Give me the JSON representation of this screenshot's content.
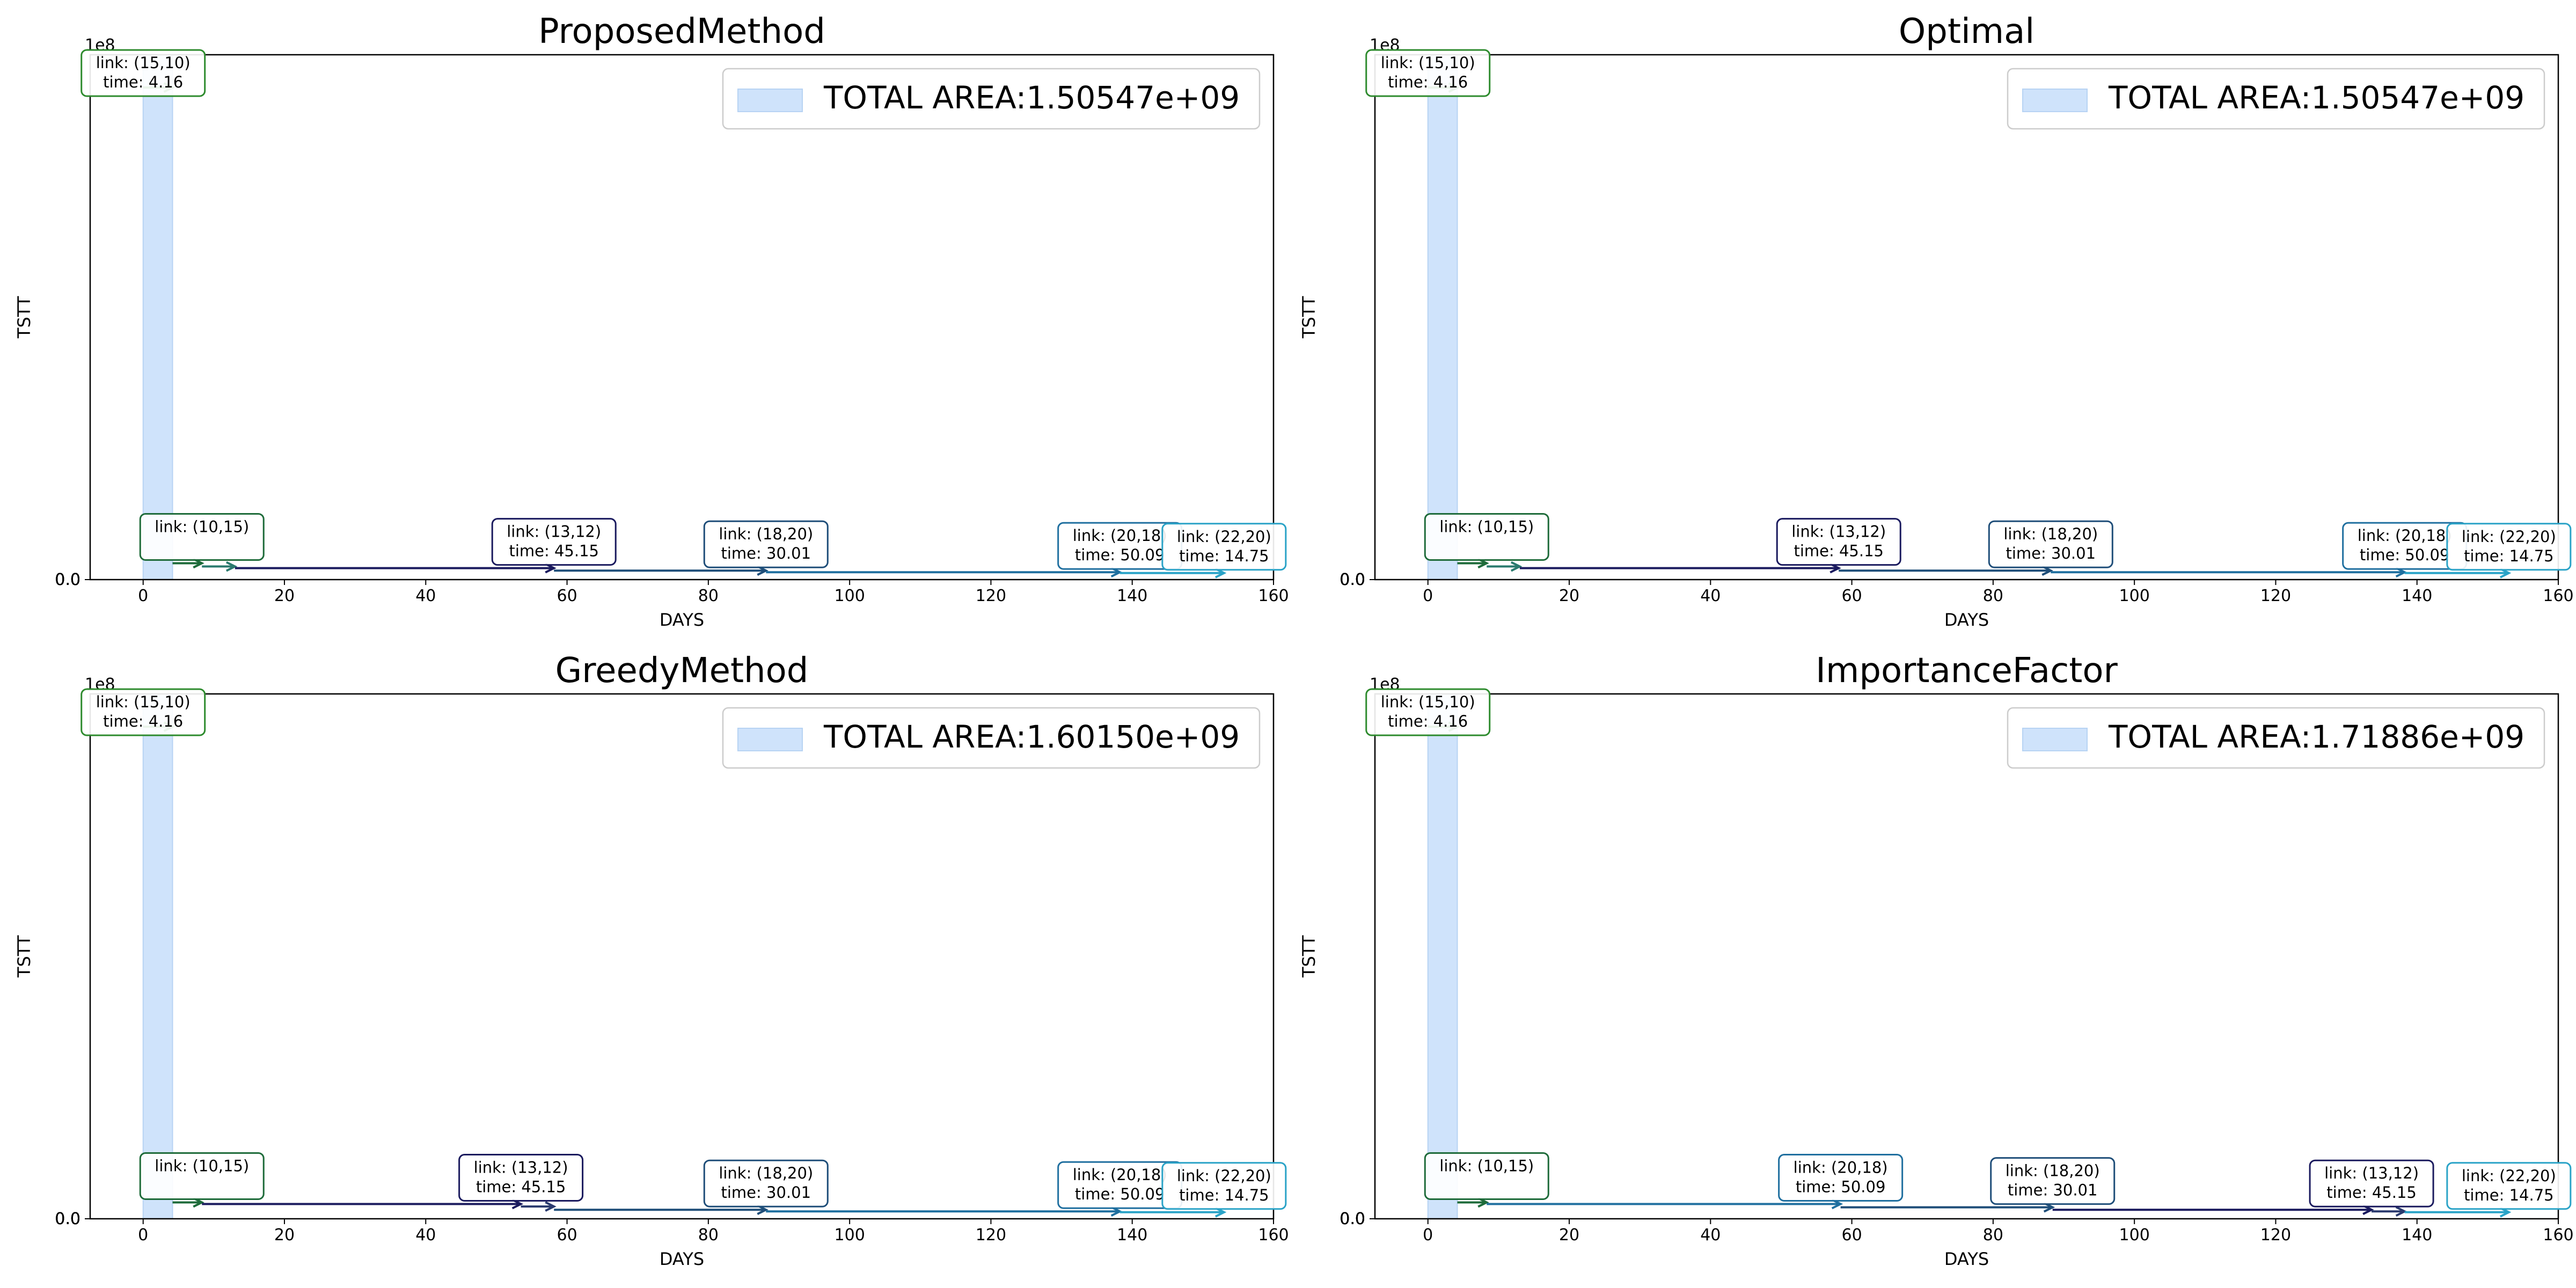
{
  "chart_data": [
    {
      "type": "area",
      "title": "ProposedMethod",
      "xlabel": "DAYS",
      "ylabel": "TSTT",
      "y_offset_label": "1e8",
      "xlim": [
        -7.5,
        160
      ],
      "ylim": [
        0,
        320000000.0
      ],
      "xticks": [
        0,
        20,
        40,
        60,
        80,
        100,
        120,
        140,
        160
      ],
      "yticks": [
        0.5,
        1.0,
        1.5,
        2.0,
        2.5,
        3.0
      ],
      "legend": {
        "label": "TOTAL AREA:1.50547e+09",
        "placement": "upper right"
      },
      "shaded_interval": {
        "x0": 0,
        "x1": 4.16
      },
      "steps": [
        {
          "link": "(15,10)",
          "time": "4.16",
          "start": 0,
          "end": 4.16,
          "tstt": 300000000.0,
          "color": "#2e8b2e"
        },
        {
          "link": "(10,15)",
          "time": "",
          "start": 4.16,
          "end": 8.32,
          "tstt": 10000000.0,
          "color": "#1e6b3a"
        },
        {
          "link": "",
          "time": "",
          "start": 8.32,
          "end": 13.0,
          "tstt": 8000000.0,
          "color": "#2a7a6e"
        },
        {
          "link": "(13,12)",
          "time": "45.15",
          "start": 13.0,
          "end": 58.15,
          "tstt": 7000000.0,
          "color": "#1a1a5e"
        },
        {
          "link": "(18,20)",
          "time": "30.01",
          "start": 58.15,
          "end": 88.16,
          "tstt": 5500000.0,
          "color": "#1f4e79"
        },
        {
          "link": "(20,18)",
          "time": "50.09",
          "start": 88.16,
          "end": 138.25,
          "tstt": 4500000.0,
          "color": "#1f6f9f"
        },
        {
          "link": "(22,20)",
          "time": "14.75",
          "start": 138.25,
          "end": 153.0,
          "tstt": 4000000.0,
          "color": "#2aa3c7"
        }
      ]
    },
    {
      "type": "area",
      "title": "Optimal",
      "xlabel": "DAYS",
      "ylabel": "TSTT",
      "y_offset_label": "1e8",
      "xlim": [
        -7.5,
        160
      ],
      "ylim": [
        0,
        320000000.0
      ],
      "xticks": [
        0,
        20,
        40,
        60,
        80,
        100,
        120,
        140,
        160
      ],
      "yticks": [
        0.5,
        1.0,
        1.5,
        2.0,
        2.5,
        3.0
      ],
      "legend": {
        "label": "TOTAL AREA:1.50547e+09",
        "placement": "upper right"
      },
      "shaded_interval": {
        "x0": 0,
        "x1": 4.16
      },
      "steps": [
        {
          "link": "(15,10)",
          "time": "4.16",
          "start": 0,
          "end": 4.16,
          "tstt": 300000000.0,
          "color": "#2e8b2e"
        },
        {
          "link": "(10,15)",
          "time": "",
          "start": 4.16,
          "end": 8.32,
          "tstt": 10000000.0,
          "color": "#1e6b3a"
        },
        {
          "link": "",
          "time": "",
          "start": 8.32,
          "end": 13.0,
          "tstt": 8000000.0,
          "color": "#2a7a6e"
        },
        {
          "link": "(13,12)",
          "time": "45.15",
          "start": 13.0,
          "end": 58.15,
          "tstt": 7000000.0,
          "color": "#1a1a5e"
        },
        {
          "link": "(18,20)",
          "time": "30.01",
          "start": 58.15,
          "end": 88.16,
          "tstt": 5500000.0,
          "color": "#1f4e79"
        },
        {
          "link": "(20,18)",
          "time": "50.09",
          "start": 88.16,
          "end": 138.25,
          "tstt": 4500000.0,
          "color": "#1f6f9f"
        },
        {
          "link": "(22,20)",
          "time": "14.75",
          "start": 138.25,
          "end": 153.0,
          "tstt": 4000000.0,
          "color": "#2aa3c7"
        }
      ]
    },
    {
      "type": "area",
      "title": "GreedyMethod",
      "xlabel": "DAYS",
      "ylabel": "TSTT",
      "y_offset_label": "1e8",
      "xlim": [
        -7.5,
        160
      ],
      "ylim": [
        0,
        320000000.0
      ],
      "xticks": [
        0,
        20,
        40,
        60,
        80,
        100,
        120,
        140,
        160
      ],
      "yticks": [
        0.5,
        1.0,
        1.5,
        2.0,
        2.5,
        3.0
      ],
      "legend": {
        "label": "TOTAL AREA:1.60150e+09",
        "placement": "upper right"
      },
      "shaded_interval": {
        "x0": 0,
        "x1": 4.16
      },
      "steps": [
        {
          "link": "(15,10)",
          "time": "4.16",
          "start": 0,
          "end": 4.16,
          "tstt": 300000000.0,
          "color": "#2e8b2e"
        },
        {
          "link": "(10,15)",
          "time": "",
          "start": 4.16,
          "end": 8.32,
          "tstt": 10000000.0,
          "color": "#1e6b3a"
        },
        {
          "link": "(13,12)",
          "time": "45.15",
          "start": 8.32,
          "end": 53.47,
          "tstt": 9000000.0,
          "color": "#1a1a5e"
        },
        {
          "link": "",
          "time": "",
          "start": 53.47,
          "end": 58.15,
          "tstt": 7500000.0,
          "color": "#2a3a6e"
        },
        {
          "link": "(18,20)",
          "time": "30.01",
          "start": 58.15,
          "end": 88.16,
          "tstt": 5500000.0,
          "color": "#1f4e79"
        },
        {
          "link": "(20,18)",
          "time": "50.09",
          "start": 88.16,
          "end": 138.25,
          "tstt": 4500000.0,
          "color": "#1f6f9f"
        },
        {
          "link": "(22,20)",
          "time": "14.75",
          "start": 138.25,
          "end": 153.0,
          "tstt": 4000000.0,
          "color": "#2aa3c7"
        }
      ]
    },
    {
      "type": "area",
      "title": "ImportanceFactor",
      "xlabel": "DAYS",
      "ylabel": "TSTT",
      "y_offset_label": "1e8",
      "xlim": [
        -7.5,
        160
      ],
      "ylim": [
        0,
        320000000.0
      ],
      "xticks": [
        0,
        20,
        40,
        60,
        80,
        100,
        120,
        140,
        160
      ],
      "yticks": [
        0.5,
        1.0,
        1.5,
        2.0,
        2.5,
        3.0
      ],
      "legend": {
        "label": "TOTAL AREA:1.71886e+09",
        "placement": "upper right"
      },
      "shaded_interval": {
        "x0": 0,
        "x1": 4.16
      },
      "steps": [
        {
          "link": "(15,10)",
          "time": "4.16",
          "start": 0,
          "end": 4.16,
          "tstt": 300000000.0,
          "color": "#2e8b2e"
        },
        {
          "link": "(10,15)",
          "time": "",
          "start": 4.16,
          "end": 8.32,
          "tstt": 10000000.0,
          "color": "#1e6b3a"
        },
        {
          "link": "(20,18)",
          "time": "50.09",
          "start": 8.32,
          "end": 58.41,
          "tstt": 9000000.0,
          "color": "#1f6f9f"
        },
        {
          "link": "(18,20)",
          "time": "30.01",
          "start": 58.41,
          "end": 88.42,
          "tstt": 7000000.0,
          "color": "#1f4e79"
        },
        {
          "link": "(13,12)",
          "time": "45.15",
          "start": 88.42,
          "end": 133.57,
          "tstt": 5500000.0,
          "color": "#1a1a5e"
        },
        {
          "link": "",
          "time": "",
          "start": 133.57,
          "end": 138.25,
          "tstt": 4500000.0,
          "color": "#2a3a6e"
        },
        {
          "link": "(22,20)",
          "time": "14.75",
          "start": 138.25,
          "end": 153.0,
          "tstt": 4000000.0,
          "color": "#2aa3c7"
        }
      ]
    }
  ]
}
